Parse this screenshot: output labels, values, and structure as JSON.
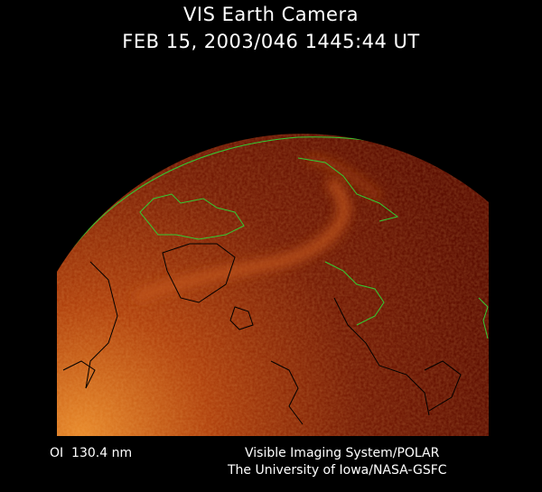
{
  "header": {
    "title": "VIS Earth Camera",
    "timestamp": "FEB 15, 2003/046 1445:44 UT"
  },
  "footer": {
    "wavelength": "OI  130.4 nm",
    "instrument": "Visible Imaging System/POLAR",
    "credit": "The University of Iowa/NASA-GSFC"
  },
  "image": {
    "subject": "earth-auroral-image",
    "colors": {
      "background": "#000000",
      "disc_dark": "#5a0c00",
      "disc_bright": "#e07a1a",
      "coastline_day": "#33cc33",
      "coastline_night": "#000000"
    }
  }
}
